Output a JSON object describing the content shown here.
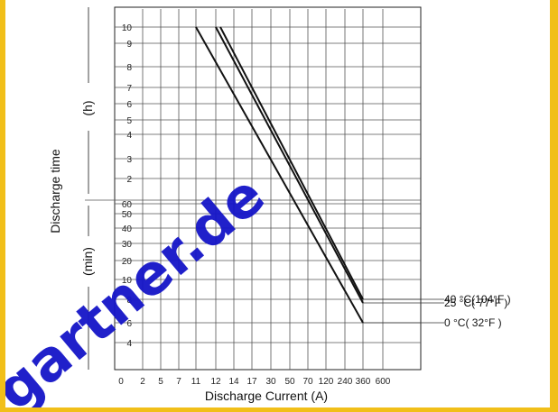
{
  "chart_data": {
    "type": "line",
    "title": "",
    "xlabel": "Discharge Current (A)",
    "ylabel": "Discharge time",
    "y_unit_upper": "(h)",
    "y_unit_lower": "(min)",
    "x_ticks": [
      "0",
      "2",
      "5",
      "7",
      "11",
      "12",
      "14",
      "17",
      "30",
      "50",
      "70",
      "120",
      "240",
      "360",
      "600"
    ],
    "y_ticks_hours": [
      "10",
      "9",
      "8",
      "7",
      "6",
      "5",
      "4",
      "3",
      "2"
    ],
    "y_ticks_minutes": [
      "60",
      "50",
      "40",
      "30",
      "20",
      "10",
      "8",
      "6",
      "4"
    ],
    "series": [
      {
        "name": "40 °C(104°F )",
        "points": [
          {
            "x": 12.5,
            "y_hours": 10
          },
          {
            "x": 360,
            "y_minutes": 8
          }
        ]
      },
      {
        "name": "25 °C( 77°F )",
        "points": [
          {
            "x": 12,
            "y_hours": 10
          },
          {
            "x": 360,
            "y_minutes": 7.5
          }
        ]
      },
      {
        "name": "0 °C( 32°F )",
        "points": [
          {
            "x": 11,
            "y_hours": 10
          },
          {
            "x": 360,
            "y_minutes": 6
          }
        ]
      }
    ],
    "grid": true,
    "legend_position": "right"
  },
  "watermark": "gartner.de"
}
